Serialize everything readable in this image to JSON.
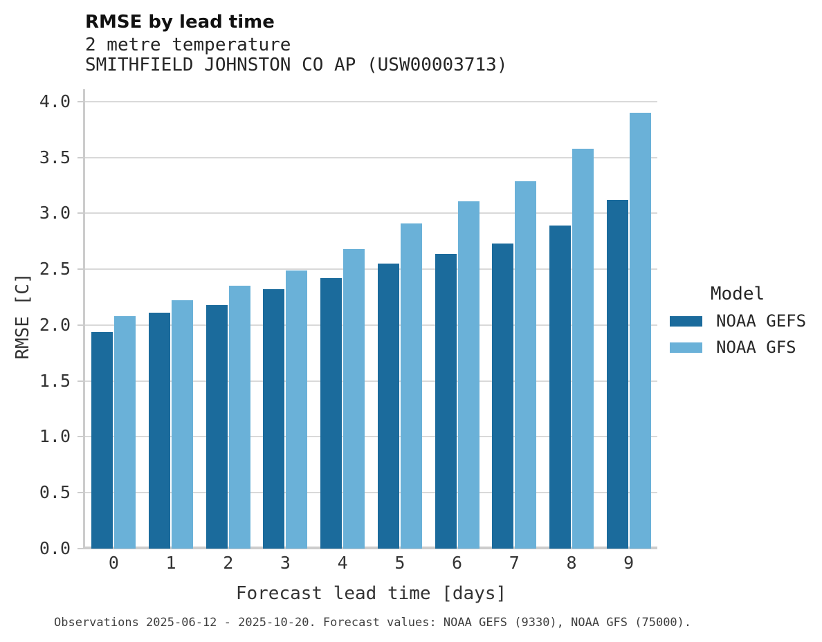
{
  "header": {
    "title": "RMSE by lead time",
    "subtitle_variable": "2 metre temperature",
    "subtitle_station": "SMITHFIELD JOHNSTON CO AP (USW00003713)"
  },
  "chart_data": {
    "type": "bar",
    "title": "RMSE by lead time",
    "subtitle": "2 metre temperature — SMITHFIELD JOHNSTON CO AP (USW00003713)",
    "categories": [
      "0",
      "1",
      "2",
      "3",
      "4",
      "5",
      "6",
      "7",
      "8",
      "9"
    ],
    "series": [
      {
        "name": "NOAA GEFS",
        "color": "#1b6b9c",
        "values": [
          1.94,
          2.11,
          2.18,
          2.32,
          2.42,
          2.55,
          2.64,
          2.73,
          2.89,
          3.12
        ]
      },
      {
        "name": "NOAA GFS",
        "color": "#6ab1d8",
        "values": [
          2.08,
          2.22,
          2.35,
          2.49,
          2.68,
          2.91,
          3.11,
          3.29,
          3.58,
          3.9
        ]
      }
    ],
    "xlabel": "Forecast lead time [days]",
    "ylabel": "RMSE [C]",
    "ylim": [
      0,
      4.11
    ],
    "yticks": [
      0.0,
      0.5,
      1.0,
      1.5,
      2.0,
      2.5,
      3.0,
      3.5,
      4.0
    ],
    "grid": true,
    "legend_title": "Model",
    "legend_position": "right of plot, middle"
  },
  "colors": {
    "series_dark_blue": "#1b6b9c",
    "series_light_blue": "#6ab1d8",
    "gridline": "#d9d9d9",
    "spine": "#cccccc"
  },
  "footer": {
    "note": "Observations 2025-06-12 - 2025-10-20. Forecast values: NOAA GEFS (9330), NOAA GFS (75000)."
  }
}
